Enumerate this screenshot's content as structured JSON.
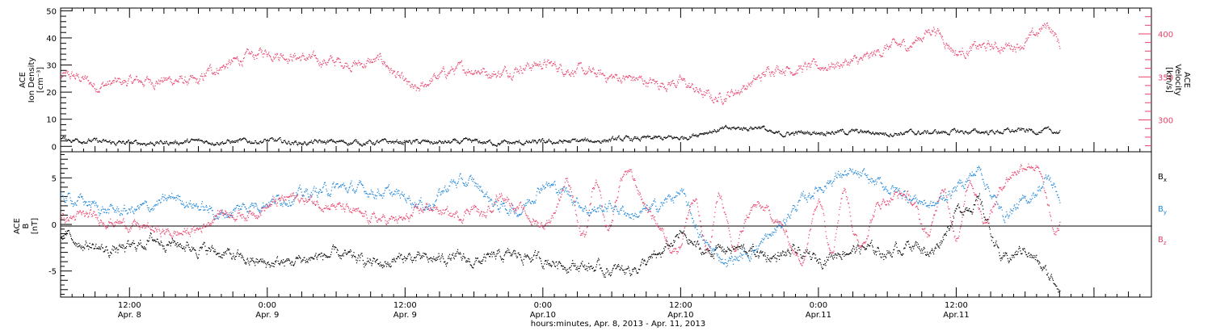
{
  "colors": {
    "axis": "#000000",
    "density": "#000000",
    "velocity": "#e8416a",
    "bx": "#000000",
    "by": "#1f86d9",
    "bz": "#e8416a"
  },
  "chart_data": [
    {
      "type": "scatter",
      "panel": "top",
      "ylabel_left": [
        "ACE",
        "Ion Density",
        "[cm⁻³]"
      ],
      "ylabel_right": [
        "ACE",
        "Velocity",
        "[km/s]"
      ],
      "ylim_left": [
        -2,
        51
      ],
      "yticks_left": [
        "0",
        "10",
        "20",
        "30",
        "40",
        "50"
      ],
      "ylim_right": [
        263,
        430
      ],
      "yticks_right": [
        "300",
        "350",
        "400"
      ],
      "x_unit": "hours since Apr. 8, 2013 00:00",
      "series": [
        {
          "key": "density",
          "color": "#000000",
          "axis": "left",
          "jitter": 0.6,
          "x": [
            6,
            8,
            10,
            12,
            15,
            18,
            21,
            24,
            27,
            30,
            33,
            36,
            39,
            42,
            45,
            48,
            51,
            54,
            57,
            60,
            62,
            64,
            66,
            67,
            68,
            70,
            71,
            72,
            75,
            78,
            81,
            84,
            87,
            90,
            93
          ],
          "y": [
            2.8,
            2.5,
            1.5,
            1.3,
            1.5,
            2.0,
            1.8,
            2.2,
            1.4,
            1.8,
            1.5,
            1.8,
            1.5,
            1.8,
            1.3,
            1.6,
            2.0,
            2.5,
            3.0,
            3.2,
            5.5,
            6.5,
            7.0,
            7.5,
            4.5,
            5.0,
            5.2,
            5.5,
            5.5,
            5.0,
            5.2,
            5.5,
            5.5,
            6.0,
            5.5
          ]
        },
        {
          "key": "velocity",
          "color": "#e8416a",
          "axis": "right",
          "jitter": 4,
          "x": [
            6,
            7,
            8,
            9,
            10,
            12,
            14,
            16,
            18,
            19,
            20,
            22,
            24,
            26,
            28,
            30,
            32,
            34,
            35,
            36,
            37,
            38,
            40,
            42,
            44,
            46,
            48,
            50,
            52,
            54,
            56,
            58,
            60,
            62,
            63,
            64,
            65,
            67,
            68,
            70,
            72,
            74,
            76,
            78,
            80,
            82,
            84,
            86,
            88,
            90,
            92,
            93
          ],
          "y": [
            350,
            351,
            348,
            340,
            342,
            345,
            346,
            347,
            343,
            358,
            362,
            372,
            380,
            375,
            370,
            368,
            365,
            370,
            355,
            342,
            332,
            345,
            358,
            360,
            354,
            362,
            366,
            360,
            355,
            350,
            348,
            342,
            345,
            330,
            325,
            330,
            335,
            350,
            362,
            360,
            362,
            366,
            370,
            385,
            388,
            408,
            378,
            385,
            385,
            390,
            412,
            388
          ]
        }
      ]
    },
    {
      "type": "scatter",
      "panel": "bottom",
      "ylabel_left": [
        "ACE",
        "B",
        "[nT]"
      ],
      "ylim_left": [
        -7.8,
        7.8
      ],
      "yticks_left": [
        "-5",
        "0",
        "5"
      ],
      "legend_placement": "right",
      "legend": [
        {
          "base": "B",
          "sub": "x",
          "color": "#000000"
        },
        {
          "base": "B",
          "sub": "y",
          "color": "#1f86d9"
        },
        {
          "base": "B",
          "sub": "z",
          "color": "#e8416a"
        }
      ],
      "series": [
        {
          "key": "bx",
          "color": "#000000",
          "jitter": 0.4,
          "osc": 0,
          "x": [
            6,
            8,
            10,
            12,
            14,
            16,
            18,
            20,
            22,
            24,
            26,
            28,
            30,
            32,
            34,
            36,
            38,
            40,
            42,
            44,
            46,
            48,
            50,
            52,
            54,
            56,
            58,
            60,
            62,
            64,
            66,
            68,
            70,
            72,
            74,
            76,
            78,
            80,
            82,
            84,
            86,
            88,
            90,
            92,
            93
          ],
          "y": [
            -1.0,
            -2.0,
            -2.8,
            -2.5,
            -1.5,
            -2.0,
            -2.5,
            -3.0,
            -3.8,
            -4.2,
            -4.0,
            -3.5,
            -3.2,
            -3.8,
            -4.2,
            -3.5,
            -3.8,
            -3.5,
            -4.0,
            -3.5,
            -3.2,
            -3.8,
            -4.2,
            -4.5,
            -5.0,
            -4.6,
            -3.5,
            -1.0,
            -3.0,
            -2.5,
            -2.8,
            -3.5,
            -3.0,
            -3.8,
            -2.8,
            -2.5,
            -3.0,
            -2.0,
            -3.0,
            1.5,
            2.5,
            -4.0,
            -2.5,
            -5.5,
            -6.5
          ]
        },
        {
          "key": "by",
          "color": "#1f86d9",
          "jitter": 0.4,
          "osc": 0,
          "x": [
            6,
            8,
            10,
            12,
            14,
            16,
            18,
            20,
            22,
            24,
            26,
            28,
            30,
            32,
            34,
            36,
            38,
            40,
            42,
            44,
            46,
            48,
            50,
            52,
            54,
            56,
            58,
            60,
            62,
            64,
            66,
            68,
            70,
            72,
            74,
            76,
            78,
            80,
            82,
            84,
            86,
            88,
            90,
            92,
            93
          ],
          "y": [
            3.0,
            2.5,
            1.5,
            1.5,
            2.0,
            3.0,
            2.0,
            1.0,
            2.0,
            2.5,
            3.0,
            3.5,
            4.0,
            3.8,
            3.5,
            3.0,
            2.0,
            4.5,
            4.5,
            2.0,
            1.5,
            4.5,
            3.5,
            1.5,
            2.0,
            1.0,
            2.0,
            3.5,
            -2.0,
            -4.0,
            -3.0,
            -1.0,
            2.0,
            4.0,
            5.5,
            5.0,
            4.0,
            3.0,
            2.0,
            4.0,
            6.0,
            1.0,
            2.5,
            5.0,
            3.0
          ]
        },
        {
          "key": "bz",
          "color": "#e8416a",
          "jitter": 0.35,
          "osc": 2.8,
          "x": [
            6,
            8,
            10,
            12,
            14,
            16,
            18,
            20,
            22,
            24,
            26,
            28,
            30,
            32,
            34,
            36,
            38,
            40,
            42,
            44,
            46,
            48,
            50,
            52,
            54,
            56,
            58,
            60,
            62,
            64,
            66,
            68,
            70,
            72,
            74,
            76,
            78,
            80,
            82,
            84,
            86,
            88,
            90,
            92,
            93
          ],
          "y": [
            0.5,
            1.0,
            0.5,
            0.0,
            -0.5,
            -1.0,
            -0.5,
            1.5,
            1.0,
            2.0,
            3.0,
            2.5,
            2.0,
            1.0,
            0.5,
            0.5,
            2.0,
            1.0,
            1.5,
            2.0,
            3.0,
            2.0,
            2.0,
            1.0,
            2.5,
            3.0,
            2.0,
            -0.5,
            0.0,
            0.5,
            -1.0,
            -0.5,
            -1.0,
            0.0,
            1.0,
            0.5,
            0.0,
            1.0,
            2.0,
            1.0,
            3.0,
            4.5,
            4.0,
            3.0,
            1.0
          ]
        }
      ]
    }
  ],
  "x_axis": {
    "xlim": [
      6,
      101
    ],
    "major_ticks": [
      {
        "hour": 12,
        "time": "12:00",
        "date": "Apr. 8"
      },
      {
        "hour": 24,
        "time": "0:00",
        "date": "Apr. 9"
      },
      {
        "hour": 36,
        "time": "12:00",
        "date": "Apr. 9"
      },
      {
        "hour": 48,
        "time": "0:00",
        "date": "Apr.10"
      },
      {
        "hour": 60,
        "time": "12:00",
        "date": "Apr.10"
      },
      {
        "hour": 72,
        "time": "0:00",
        "date": "Apr.11"
      },
      {
        "hour": 84,
        "time": "12:00",
        "date": "Apr.11"
      }
    ],
    "title": "hours:minutes, Apr.  8, 2013 - Apr. 11, 2013"
  }
}
